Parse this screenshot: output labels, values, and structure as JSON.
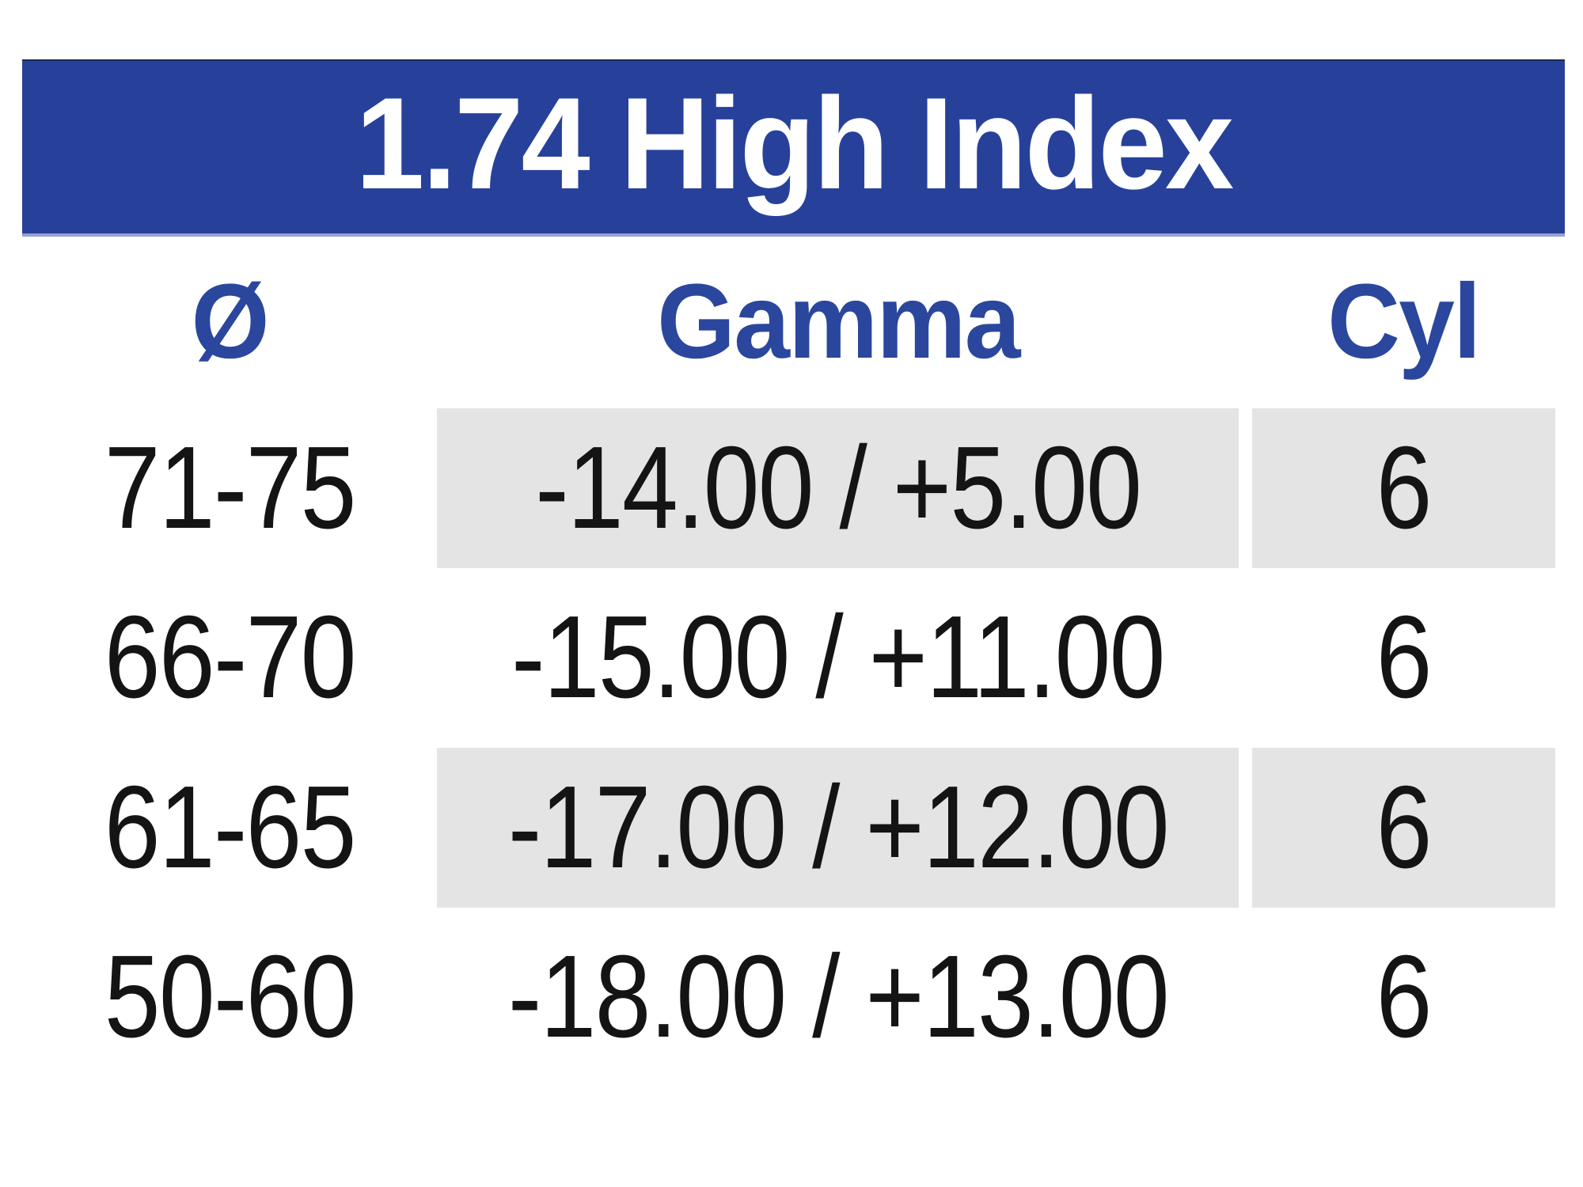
{
  "header": {
    "title": "1.74 High Index"
  },
  "table": {
    "columns": [
      {
        "key": "diameter",
        "label": "Ø"
      },
      {
        "key": "gamma",
        "label": "Gamma"
      },
      {
        "key": "cyl",
        "label": "Cyl"
      }
    ],
    "rows": [
      {
        "diameter": "71-75",
        "gamma": "-14.00 / +5.00",
        "cyl": "6",
        "shaded": true
      },
      {
        "diameter": "66-70",
        "gamma": "-15.00 / +11.00",
        "cyl": "6",
        "shaded": false
      },
      {
        "diameter": "61-65",
        "gamma": "-17.00 / +12.00",
        "cyl": "6",
        "shaded": true
      },
      {
        "diameter": "50-60",
        "gamma": "-18.00 / +13.00",
        "cyl": "6",
        "shaded": false
      }
    ]
  },
  "colors": {
    "header_bg": "#27419b",
    "header_text": "#ffffff",
    "column_header_text": "#2a479d",
    "shaded_cell_bg": "#e4e4e4",
    "body_text": "#141414"
  }
}
